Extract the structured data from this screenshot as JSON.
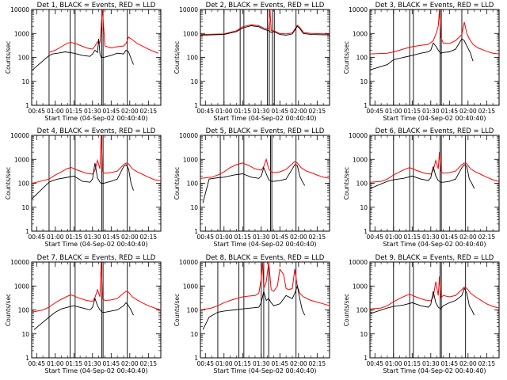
{
  "chart_data": {
    "type": "line",
    "y_scale": "log",
    "ylim": [
      1,
      10000
    ],
    "y_tick_labels": [
      "1",
      "10",
      "100",
      "1000",
      "10000"
    ],
    "y_tick_values": [
      1,
      10,
      100,
      1000,
      10000
    ],
    "ylabel": "Counts/sec",
    "xlabel": "Start Time (04-Sep-02 00:40:40)",
    "x_tick_labels": [
      "00:45",
      "01:00",
      "01:15",
      "01:30",
      "01:45",
      "02:00",
      "02:15"
    ],
    "x_tick_minutes": [
      45,
      60,
      75,
      90,
      105,
      120,
      135
    ],
    "xlim_minutes": [
      41,
      145
    ],
    "grid": false,
    "legend": "in title",
    "colors": {
      "events": "#000000",
      "lld": "#ff0000",
      "axes": "#000000"
    },
    "series_names": [
      "Events",
      "LLD"
    ],
    "panels": [
      {
        "title": "Det 1, BLACK = Events, RED = LLD",
        "vlines_min": [
          55,
          72,
          76,
          97.5,
          98.5,
          118
        ],
        "events": {
          "x": [
            41,
            55,
            58,
            62,
            68,
            75,
            82,
            88,
            90,
            92,
            94,
            95,
            96,
            97,
            99,
            102,
            105,
            110,
            115,
            117,
            119,
            121,
            123
          ],
          "y": [
            28,
            120,
            140,
            150,
            170,
            150,
            120,
            110,
            140,
            200,
            160,
            600,
            140,
            100,
            100,
            110,
            120,
            150,
            140,
            200,
            170,
            90,
            50
          ]
        },
        "lld": {
          "x": [
            55,
            60,
            65,
            70,
            73,
            78,
            85,
            90,
            92,
            94,
            96,
            98,
            100,
            105,
            110,
            115,
            117,
            119,
            122,
            126,
            130,
            135,
            140,
            143
          ],
          "y": [
            160,
            200,
            280,
            400,
            420,
            350,
            250,
            220,
            300,
            450,
            400,
            10000,
            300,
            250,
            280,
            300,
            380,
            700,
            550,
            380,
            300,
            220,
            170,
            150
          ]
        }
      },
      {
        "title": "Det 2, BLACK = Events, RED = LLD",
        "vlines_min": [
          60,
          73,
          76,
          95,
          96.5,
          99,
          100.5,
          118
        ],
        "events": {
          "x": [
            41,
            50,
            60,
            70,
            75,
            82,
            88,
            92,
            96,
            98,
            100,
            105,
            110,
            115,
            119,
            121,
            124,
            130,
            140,
            145
          ],
          "y": [
            850,
            870,
            900,
            1200,
            1700,
            2100,
            1900,
            1500,
            1300,
            1100,
            1200,
            900,
            850,
            950,
            2000,
            1600,
            1000,
            900,
            880,
            870
          ]
        },
        "lld": {
          "x": [
            41,
            50,
            60,
            70,
            75,
            82,
            88,
            92,
            96,
            97,
            98,
            100,
            105,
            110,
            115,
            119,
            121,
            124,
            130,
            140,
            145
          ],
          "y": [
            900,
            920,
            950,
            1300,
            1900,
            2300,
            2100,
            1700,
            1500,
            10000,
            1300,
            1300,
            1000,
            950,
            1050,
            2200,
            1800,
            1100,
            1000,
            960,
            950
          ]
        }
      },
      {
        "title": "Det 3, BLACK = Events, RED = LLD",
        "vlines_min": [
          60,
          73,
          76,
          97.5,
          98.5,
          115
        ],
        "events": {
          "x": [
            41,
            55,
            60,
            68,
            75,
            82,
            88,
            90,
            92,
            94,
            96,
            98,
            100,
            105,
            110,
            115,
            117,
            119,
            122,
            123,
            124
          ],
          "y": [
            30,
            50,
            80,
            100,
            120,
            150,
            170,
            200,
            400,
            300,
            200,
            150,
            160,
            170,
            220,
            600,
            500,
            300,
            150,
            100,
            70
          ]
        },
        "lld": {
          "x": [
            41,
            55,
            60,
            65,
            70,
            75,
            82,
            88,
            92,
            94,
            96,
            97,
            98,
            100,
            105,
            110,
            115,
            117,
            119,
            121,
            124,
            128,
            135,
            140,
            145
          ],
          "y": [
            140,
            150,
            170,
            200,
            240,
            280,
            320,
            350,
            500,
            900,
            2000,
            10000,
            700,
            400,
            380,
            500,
            900,
            3000,
            1000,
            600,
            350,
            250,
            180,
            150,
            140
          ]
        }
      },
      {
        "title": "Det 4, BLACK = Events, RED = LLD",
        "vlines_min": [
          55,
          72,
          76,
          97.5,
          98.5,
          118
        ],
        "events": {
          "x": [
            41,
            55,
            58,
            62,
            68,
            75,
            82,
            88,
            90,
            92,
            94,
            95,
            96,
            97,
            99,
            102,
            105,
            110,
            115,
            117,
            119,
            121,
            123
          ],
          "y": [
            22,
            110,
            130,
            150,
            170,
            200,
            120,
            110,
            150,
            700,
            160,
            140,
            110,
            100,
            100,
            110,
            120,
            150,
            500,
            600,
            400,
            100,
            50
          ]
        },
        "lld": {
          "x": [
            41,
            45,
            55,
            60,
            65,
            70,
            73,
            78,
            85,
            90,
            92,
            94,
            96,
            97,
            98,
            100,
            105,
            110,
            115,
            117,
            119,
            122,
            126,
            130,
            135,
            140,
            145
          ],
          "y": [
            100,
            110,
            150,
            220,
            300,
            420,
            450,
            350,
            260,
            240,
            350,
            900,
            400,
            10000,
            320,
            260,
            280,
            320,
            600,
            700,
            650,
            400,
            300,
            240,
            180,
            140,
            130
          ]
        }
      },
      {
        "title": "Det 5, BLACK = Events, RED = LLD",
        "vlines_min": [
          57,
          72,
          76,
          97.5,
          98.5,
          118
        ],
        "events": {
          "x": [
            43,
            48,
            55,
            60,
            68,
            75,
            82,
            88,
            90,
            92,
            94,
            96,
            98,
            100,
            105,
            110,
            115,
            117,
            119,
            121,
            123,
            125
          ],
          "y": [
            15,
            150,
            170,
            180,
            220,
            250,
            180,
            160,
            200,
            450,
            250,
            140,
            120,
            120,
            130,
            150,
            400,
            600,
            550,
            200,
            120,
            80
          ]
        },
        "lld": {
          "x": [
            41,
            50,
            55,
            60,
            65,
            70,
            75,
            80,
            85,
            90,
            92,
            94,
            96,
            98,
            100,
            105,
            110,
            115,
            117,
            119,
            122,
            126,
            130,
            135,
            140,
            145
          ],
          "y": [
            160,
            180,
            220,
            300,
            450,
            600,
            700,
            550,
            400,
            350,
            500,
            1000,
            400,
            300,
            280,
            300,
            380,
            650,
            800,
            700,
            450,
            330,
            280,
            220,
            180,
            160
          ]
        }
      },
      {
        "title": "Det 6, BLACK = Events, RED = LLD",
        "vlines_min": [
          60,
          73,
          76,
          97.5,
          98.5,
          118
        ],
        "events": {
          "x": [
            41,
            55,
            60,
            68,
            75,
            82,
            88,
            90,
            92,
            94,
            96,
            98,
            100,
            105,
            110,
            115,
            117,
            119,
            121,
            123,
            125
          ],
          "y": [
            60,
            120,
            140,
            160,
            200,
            150,
            130,
            170,
            500,
            200,
            130,
            110,
            110,
            120,
            150,
            450,
            600,
            500,
            150,
            100,
            60
          ]
        },
        "lld": {
          "x": [
            41,
            50,
            55,
            60,
            65,
            70,
            73,
            78,
            85,
            90,
            92,
            94,
            96,
            97,
            98,
            100,
            105,
            110,
            115,
            117,
            119,
            122,
            126,
            130,
            135,
            140,
            145
          ],
          "y": [
            110,
            120,
            150,
            220,
            300,
            400,
            450,
            350,
            260,
            240,
            350,
            900,
            400,
            2000,
            320,
            260,
            280,
            320,
            600,
            700,
            650,
            400,
            300,
            240,
            180,
            140,
            120
          ]
        }
      },
      {
        "title": "Det 7, BLACK = Events, RED = LLD",
        "vlines_min": [
          55,
          72,
          76,
          97.5,
          98.5,
          118
        ],
        "events": {
          "x": [
            43,
            48,
            55,
            60,
            65,
            70,
            75,
            82,
            88,
            90,
            92,
            94,
            96,
            98,
            100,
            105,
            110,
            115,
            117,
            119,
            121,
            123
          ],
          "y": [
            15,
            25,
            50,
            80,
            110,
            130,
            150,
            120,
            100,
            130,
            300,
            150,
            100,
            80,
            80,
            90,
            100,
            150,
            200,
            150,
            100,
            60
          ]
        },
        "lld": {
          "x": [
            41,
            50,
            55,
            60,
            65,
            70,
            73,
            78,
            85,
            90,
            92,
            94,
            96,
            97,
            98,
            100,
            105,
            110,
            115,
            117,
            119,
            122,
            126,
            130,
            135,
            140,
            145
          ],
          "y": [
            80,
            100,
            130,
            200,
            280,
            380,
            420,
            330,
            250,
            230,
            330,
            700,
            350,
            10000,
            300,
            250,
            260,
            300,
            500,
            600,
            550,
            350,
            260,
            200,
            150,
            120,
            100
          ]
        }
      },
      {
        "title": "Det 8, BLACK = Events, RED = LLD",
        "vlines_min": [
          55,
          72,
          76,
          90,
          92,
          96,
          118
        ],
        "events": {
          "x": [
            43,
            48,
            55,
            60,
            68,
            75,
            82,
            88,
            90,
            92,
            94,
            96,
            98,
            100,
            105,
            110,
            115,
            117,
            119,
            121,
            123,
            125
          ],
          "y": [
            15,
            50,
            80,
            90,
            100,
            110,
            120,
            130,
            200,
            600,
            250,
            300,
            200,
            150,
            180,
            400,
            300,
            500,
            1000,
            300,
            100,
            60
          ]
        },
        "lld": {
          "x": [
            41,
            50,
            55,
            60,
            65,
            70,
            75,
            80,
            85,
            88,
            90,
            91,
            92,
            94,
            96,
            98,
            100,
            103,
            105,
            108,
            110,
            112,
            115,
            117,
            119,
            121,
            124,
            130,
            140,
            145
          ],
          "y": [
            100,
            120,
            150,
            200,
            250,
            300,
            350,
            380,
            400,
            500,
            2000,
            10000,
            800,
            1500,
            10000,
            700,
            600,
            1000,
            5000,
            3000,
            800,
            700,
            800,
            5000,
            1000,
            500,
            350,
            250,
            180,
            150
          ]
        }
      },
      {
        "title": "Det 9, BLACK = Events, RED = LLD",
        "vlines_min": [
          60,
          73,
          76,
          97.5,
          98.5,
          118
        ],
        "events": {
          "x": [
            41,
            55,
            60,
            68,
            75,
            82,
            88,
            90,
            92,
            94,
            96,
            98,
            100,
            105,
            110,
            115,
            117,
            119,
            121,
            123,
            125
          ],
          "y": [
            70,
            120,
            140,
            160,
            200,
            150,
            130,
            170,
            600,
            200,
            130,
            110,
            150,
            200,
            250,
            400,
            800,
            500,
            150,
            100,
            60
          ]
        },
        "lld": {
          "x": [
            41,
            50,
            55,
            60,
            65,
            70,
            73,
            78,
            85,
            90,
            92,
            94,
            96,
            97,
            98,
            100,
            105,
            110,
            115,
            117,
            119,
            122,
            126,
            130,
            135,
            140,
            145
          ],
          "y": [
            110,
            120,
            150,
            220,
            300,
            400,
            450,
            350,
            260,
            240,
            350,
            1500,
            400,
            2500,
            320,
            400,
            350,
            400,
            700,
            900,
            800,
            500,
            350,
            260,
            180,
            140,
            120
          ]
        }
      }
    ]
  }
}
